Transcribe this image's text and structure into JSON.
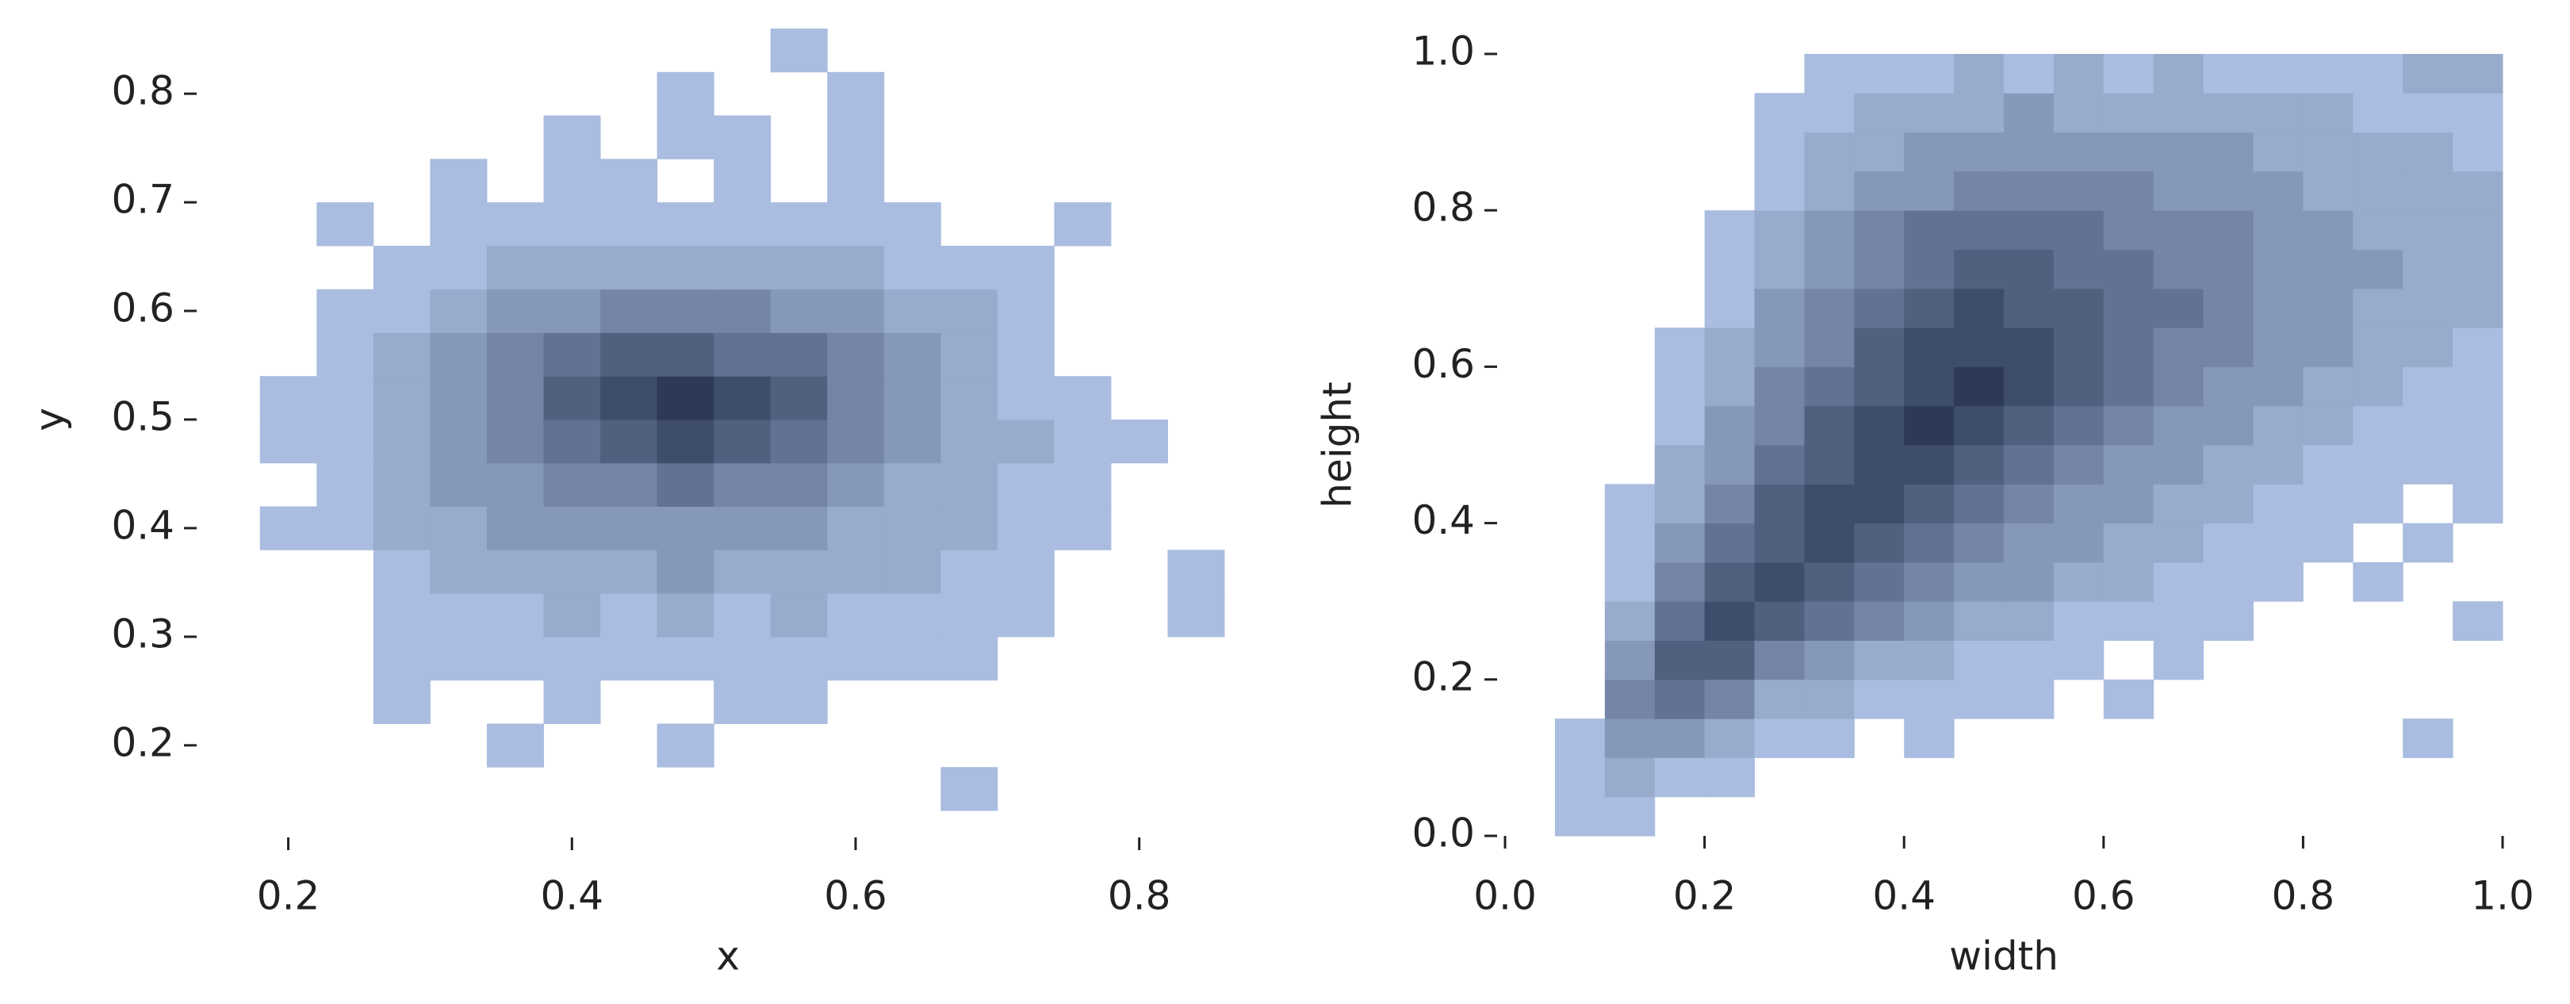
{
  "chart_data": [
    {
      "type": "hist2d",
      "xlabel": "x",
      "ylabel": "y",
      "xlim": [
        0.16,
        0.86
      ],
      "ylim": [
        0.14,
        0.86
      ],
      "xticks": [
        0.2,
        0.4,
        0.6,
        0.8
      ],
      "yticks": [
        0.2,
        0.3,
        0.4,
        0.5,
        0.6,
        0.7,
        0.8
      ],
      "colors": [
        "#bcd0f3",
        "#2c3a57"
      ],
      "xbins": [
        0.18,
        0.22,
        0.26,
        0.3,
        0.34,
        0.38,
        0.42,
        0.46,
        0.5,
        0.54,
        0.58,
        0.62,
        0.66,
        0.7,
        0.74,
        0.78,
        0.82,
        0.86
      ],
      "ybins": [
        0.14,
        0.18,
        0.22,
        0.26,
        0.3,
        0.34,
        0.38,
        0.42,
        0.46,
        0.5,
        0.54,
        0.58,
        0.62,
        0.66,
        0.7,
        0.74,
        0.78,
        0.82,
        0.86
      ],
      "counts": [
        [
          0,
          0,
          0,
          0,
          0,
          0,
          0,
          0,
          0,
          0,
          0,
          0,
          1,
          0,
          0,
          0,
          0
        ],
        [
          0,
          0,
          0,
          0,
          1,
          0,
          0,
          1,
          0,
          0,
          0,
          0,
          0,
          0,
          0,
          0,
          0
        ],
        [
          0,
          0,
          1,
          0,
          0,
          1,
          0,
          0,
          1,
          1,
          0,
          0,
          0,
          0,
          0,
          0,
          0
        ],
        [
          0,
          0,
          1,
          1,
          1,
          1,
          1,
          1,
          1,
          1,
          1,
          1,
          1,
          0,
          0,
          0,
          0
        ],
        [
          0,
          0,
          1,
          1,
          1,
          2,
          1,
          2,
          1,
          2,
          1,
          1,
          1,
          1,
          0,
          0,
          1
        ],
        [
          0,
          0,
          1,
          2,
          2,
          2,
          2,
          3,
          2,
          2,
          2,
          2,
          1,
          1,
          0,
          0,
          1
        ],
        [
          1,
          1,
          2,
          2,
          3,
          3,
          3,
          3,
          3,
          3,
          2,
          2,
          2,
          1,
          1,
          0,
          0
        ],
        [
          0,
          1,
          2,
          3,
          3,
          4,
          4,
          5,
          4,
          4,
          3,
          2,
          2,
          1,
          1,
          0,
          0
        ],
        [
          1,
          1,
          2,
          3,
          4,
          5,
          6,
          7,
          6,
          5,
          4,
          3,
          2,
          2,
          1,
          1,
          0
        ],
        [
          1,
          1,
          2,
          3,
          4,
          6,
          7,
          8,
          7,
          6,
          4,
          3,
          2,
          1,
          1,
          0,
          0
        ],
        [
          0,
          1,
          2,
          3,
          4,
          5,
          6,
          6,
          5,
          5,
          4,
          3,
          2,
          1,
          0,
          0,
          0
        ],
        [
          0,
          1,
          1,
          2,
          3,
          3,
          4,
          4,
          4,
          3,
          3,
          2,
          2,
          1,
          0,
          0,
          0
        ],
        [
          0,
          0,
          1,
          1,
          2,
          2,
          2,
          2,
          2,
          2,
          2,
          1,
          1,
          1,
          0,
          0,
          0
        ],
        [
          0,
          1,
          0,
          1,
          1,
          1,
          1,
          1,
          1,
          1,
          1,
          1,
          0,
          0,
          1,
          0,
          0
        ],
        [
          0,
          0,
          0,
          1,
          0,
          1,
          1,
          0,
          1,
          0,
          1,
          0,
          0,
          0,
          0,
          0,
          0
        ],
        [
          0,
          0,
          0,
          0,
          0,
          1,
          0,
          1,
          1,
          0,
          1,
          0,
          0,
          0,
          0,
          0,
          0
        ],
        [
          0,
          0,
          0,
          0,
          0,
          0,
          0,
          1,
          0,
          0,
          1,
          0,
          0,
          0,
          0,
          0,
          0
        ],
        [
          0,
          0,
          0,
          0,
          0,
          0,
          0,
          0,
          0,
          1,
          0,
          0,
          0,
          0,
          0,
          0,
          0
        ]
      ]
    },
    {
      "type": "hist2d",
      "xlabel": "width",
      "ylabel": "height",
      "xlim": [
        0,
        1
      ],
      "ylim": [
        0,
        1
      ],
      "xticks": [
        {
          "value": 0,
          "label": "0.0"
        },
        0.2,
        0.4,
        0.6,
        0.8,
        {
          "value": 1,
          "label": "1.0"
        }
      ],
      "yticks": [
        {
          "value": 0,
          "label": "0.0"
        },
        0.2,
        0.4,
        0.6,
        0.8,
        {
          "value": 1,
          "label": "1.0"
        }
      ],
      "colors": [
        "#bcd0f3",
        "#2c3a57"
      ],
      "xbins": [
        0,
        0.05,
        0.1,
        0.15,
        0.2,
        0.25,
        0.3,
        0.35,
        0.4,
        0.45,
        0.5,
        0.55,
        0.6,
        0.65,
        0.7,
        0.75,
        0.8,
        0.85,
        0.9,
        0.95,
        1
      ],
      "ybins": [
        0,
        0.05,
        0.1,
        0.15,
        0.2,
        0.25,
        0.3,
        0.35,
        0.4,
        0.45,
        0.5,
        0.55,
        0.6,
        0.65,
        0.7,
        0.75,
        0.8,
        0.85,
        0.9,
        0.95,
        1
      ],
      "counts": [
        [
          0,
          1,
          1,
          0,
          0,
          0,
          0,
          0,
          0,
          0,
          0,
          0,
          0,
          0,
          0,
          0,
          0,
          0,
          0,
          0
        ],
        [
          0,
          1,
          2,
          1,
          1,
          0,
          0,
          0,
          0,
          0,
          0,
          0,
          0,
          0,
          0,
          0,
          0,
          0,
          0,
          0
        ],
        [
          0,
          1,
          3,
          3,
          2,
          1,
          1,
          0,
          1,
          0,
          0,
          0,
          0,
          0,
          0,
          0,
          0,
          0,
          1,
          0
        ],
        [
          0,
          0,
          4,
          5,
          4,
          2,
          2,
          1,
          1,
          1,
          1,
          0,
          1,
          0,
          0,
          0,
          0,
          0,
          0,
          0
        ],
        [
          0,
          0,
          3,
          6,
          6,
          4,
          3,
          2,
          2,
          1,
          1,
          1,
          0,
          1,
          0,
          0,
          0,
          0,
          0,
          0
        ],
        [
          0,
          0,
          2,
          5,
          7,
          6,
          5,
          4,
          3,
          2,
          2,
          1,
          1,
          1,
          1,
          0,
          0,
          0,
          0,
          1
        ],
        [
          0,
          0,
          1,
          4,
          6,
          7,
          6,
          5,
          4,
          3,
          3,
          2,
          2,
          1,
          1,
          1,
          0,
          1,
          0,
          0
        ],
        [
          0,
          0,
          1,
          3,
          5,
          6,
          7,
          6,
          5,
          4,
          3,
          3,
          2,
          2,
          1,
          1,
          1,
          0,
          1,
          0
        ],
        [
          0,
          0,
          1,
          2,
          4,
          6,
          7,
          7,
          6,
          5,
          4,
          3,
          3,
          2,
          2,
          1,
          1,
          1,
          0,
          1
        ],
        [
          0,
          0,
          0,
          2,
          3,
          5,
          6,
          7,
          7,
          6,
          5,
          4,
          3,
          3,
          2,
          2,
          1,
          1,
          1,
          1
        ],
        [
          0,
          0,
          0,
          1,
          3,
          4,
          6,
          7,
          8,
          7,
          6,
          5,
          4,
          3,
          3,
          2,
          2,
          1,
          1,
          1
        ],
        [
          0,
          0,
          0,
          1,
          2,
          4,
          5,
          6,
          7,
          8,
          7,
          6,
          5,
          4,
          3,
          3,
          2,
          2,
          1,
          1
        ],
        [
          0,
          0,
          0,
          1,
          2,
          3,
          4,
          6,
          7,
          7,
          7,
          6,
          5,
          4,
          4,
          3,
          3,
          2,
          2,
          1
        ],
        [
          0,
          0,
          0,
          0,
          1,
          3,
          4,
          5,
          6,
          7,
          6,
          6,
          5,
          5,
          4,
          3,
          3,
          2,
          2,
          2
        ],
        [
          0,
          0,
          0,
          0,
          1,
          2,
          3,
          4,
          5,
          6,
          6,
          5,
          5,
          4,
          4,
          3,
          3,
          3,
          2,
          2
        ],
        [
          0,
          0,
          0,
          0,
          1,
          2,
          3,
          4,
          5,
          5,
          5,
          5,
          4,
          4,
          4,
          3,
          3,
          2,
          2,
          2
        ],
        [
          0,
          0,
          0,
          0,
          0,
          1,
          2,
          3,
          3,
          4,
          4,
          4,
          4,
          3,
          3,
          3,
          2,
          2,
          2,
          2
        ],
        [
          0,
          0,
          0,
          0,
          0,
          1,
          2,
          2,
          3,
          3,
          3,
          3,
          3,
          3,
          3,
          2,
          2,
          2,
          2,
          1
        ],
        [
          0,
          0,
          0,
          0,
          0,
          1,
          1,
          2,
          2,
          2,
          3,
          2,
          2,
          2,
          2,
          2,
          2,
          1,
          1,
          1
        ],
        [
          0,
          0,
          0,
          0,
          0,
          0,
          1,
          1,
          1,
          2,
          1,
          2,
          1,
          2,
          1,
          1,
          1,
          1,
          2,
          2
        ]
      ]
    }
  ]
}
